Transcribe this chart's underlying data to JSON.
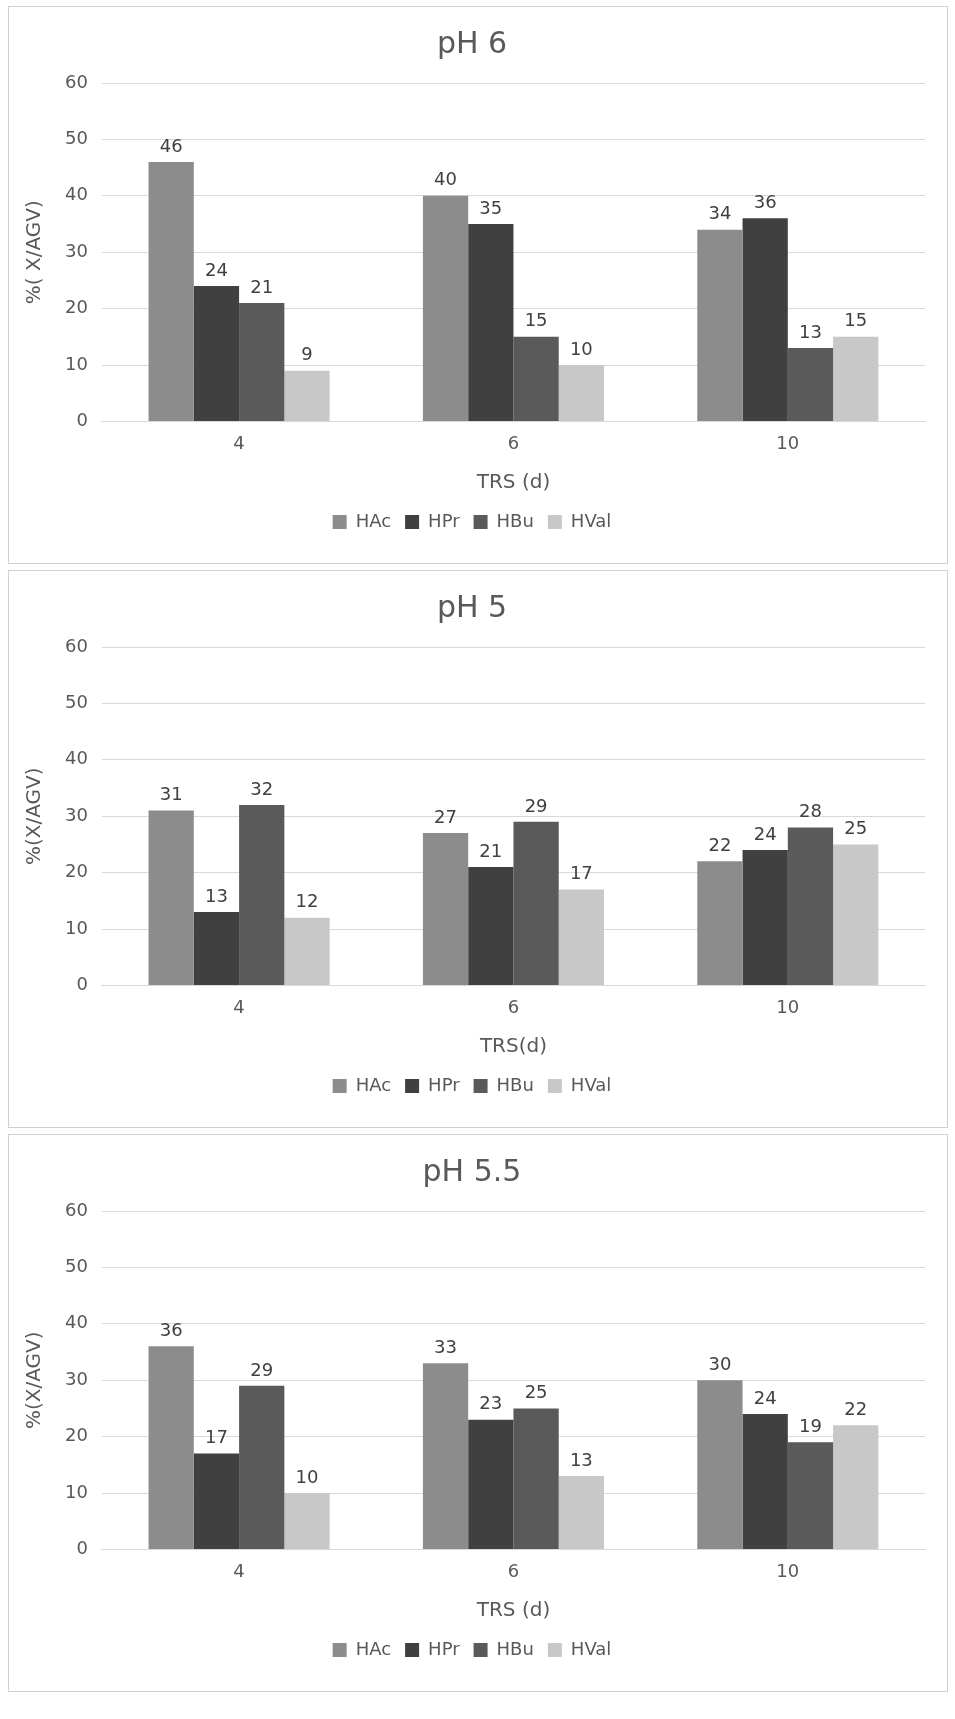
{
  "chart_data": [
    {
      "type": "bar",
      "title": "pH 6",
      "xlabel": "TRS (d)",
      "ylabel": "%( X/AGV)",
      "categories": [
        "4",
        "6",
        "10"
      ],
      "series": [
        {
          "name": "HAc",
          "color": "#8c8c8c",
          "values": [
            46,
            40,
            34
          ]
        },
        {
          "name": "HPr",
          "color": "#404040",
          "values": [
            24,
            35,
            36
          ]
        },
        {
          "name": "HBu",
          "color": "#5a5a5a",
          "values": [
            21,
            15,
            13
          ]
        },
        {
          "name": "HVal",
          "color": "#c8c8c8",
          "values": [
            9,
            10,
            15
          ]
        }
      ],
      "ylim": [
        0,
        60
      ],
      "yticks": [
        0,
        10,
        20,
        30,
        40,
        50,
        60
      ],
      "grid": "y",
      "legend": "bottom",
      "data_labels": true
    },
    {
      "type": "bar",
      "title": "pH 5",
      "xlabel": "TRS(d)",
      "ylabel": "%(X/AGV)",
      "categories": [
        "4",
        "6",
        "10"
      ],
      "series": [
        {
          "name": "HAc",
          "color": "#8c8c8c",
          "values": [
            31,
            27,
            22
          ]
        },
        {
          "name": "HPr",
          "color": "#404040",
          "values": [
            13,
            21,
            24
          ]
        },
        {
          "name": "HBu",
          "color": "#5a5a5a",
          "values": [
            32,
            29,
            28
          ]
        },
        {
          "name": "HVal",
          "color": "#c8c8c8",
          "values": [
            12,
            17,
            25
          ]
        }
      ],
      "ylim": [
        0,
        60
      ],
      "yticks": [
        0,
        10,
        20,
        30,
        40,
        50,
        60
      ],
      "grid": "y",
      "legend": "bottom",
      "data_labels": true
    },
    {
      "type": "bar",
      "title": "pH 5.5",
      "xlabel": "TRS (d)",
      "ylabel": "%(X/AGV)",
      "categories": [
        "4",
        "6",
        "10"
      ],
      "series": [
        {
          "name": "HAc",
          "color": "#8c8c8c",
          "values": [
            36,
            33,
            30
          ]
        },
        {
          "name": "HPr",
          "color": "#404040",
          "values": [
            17,
            23,
            24
          ]
        },
        {
          "name": "HBu",
          "color": "#5a5a5a",
          "values": [
            29,
            25,
            19
          ]
        },
        {
          "name": "HVal",
          "color": "#c8c8c8",
          "values": [
            10,
            13,
            22
          ]
        }
      ],
      "ylim": [
        0,
        60
      ],
      "yticks": [
        0,
        10,
        20,
        30,
        40,
        50,
        60
      ],
      "grid": "y",
      "legend": "bottom",
      "data_labels": true
    }
  ]
}
